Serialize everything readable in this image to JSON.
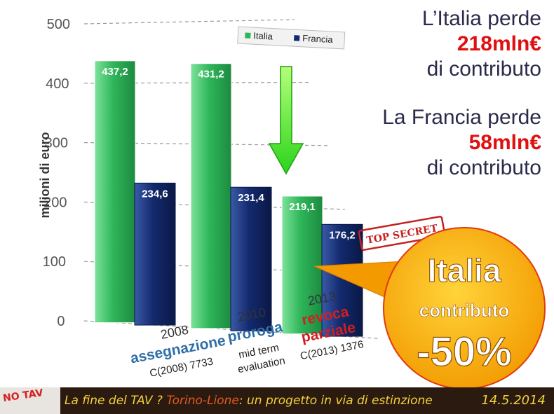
{
  "colors": {
    "italia": "#2fb65a",
    "francia": "#142a6e",
    "arrow": "#33e01f",
    "bubble": "#f7a600",
    "red": "#e01010"
  },
  "chart_data": {
    "type": "bar",
    "ylabel": "milioni di euro",
    "ylim": [
      0,
      500
    ],
    "yticks": [
      "500",
      "400",
      "300",
      "200",
      "100",
      "0"
    ],
    "grid": true,
    "legend_position": "top-right",
    "categories": [
      {
        "year": "2008",
        "label": "assegnazione",
        "label_style": "blue",
        "sub": [
          "C(2008) 7733"
        ]
      },
      {
        "year": "2010",
        "label": "proroga",
        "label_style": "blue",
        "sub": [
          "mid term",
          "evaluation"
        ]
      },
      {
        "year": "2013",
        "label": "revoca parziale",
        "label_lines": [
          "revoca",
          "parziale"
        ],
        "label_style": "red",
        "sub": [
          "C(2013) 1376"
        ]
      }
    ],
    "series": [
      {
        "name": "Italia",
        "values": [
          437.2,
          431.2,
          219.1
        ],
        "labels": [
          "437,2",
          "431,2",
          "219,1"
        ],
        "color": "#2fb65a"
      },
      {
        "name": "Francia",
        "values": [
          234.6,
          231.4,
          176.2
        ],
        "labels": [
          "234,6",
          "231,4",
          "176,2"
        ],
        "color": "#142a6e"
      }
    ]
  },
  "annotations": {
    "italia_line1": "L’Italia perde",
    "italia_amount": "218mln€",
    "italia_line3": "di contributo",
    "francia_line1": "La Francia perde",
    "francia_amount": "58mln€",
    "francia_line3": "di contributo",
    "stamp": "TOP SECRET",
    "bubble_title": "Italia",
    "bubble_sub": "contributo",
    "bubble_value": "-50%"
  },
  "footer": {
    "logo": "NO TAV",
    "text_part1": "La fine del TAV ?",
    "text_accent": "Torino-Lione",
    "text_part2": ": un progetto in via di estinzione",
    "date": "14.5.2014"
  }
}
